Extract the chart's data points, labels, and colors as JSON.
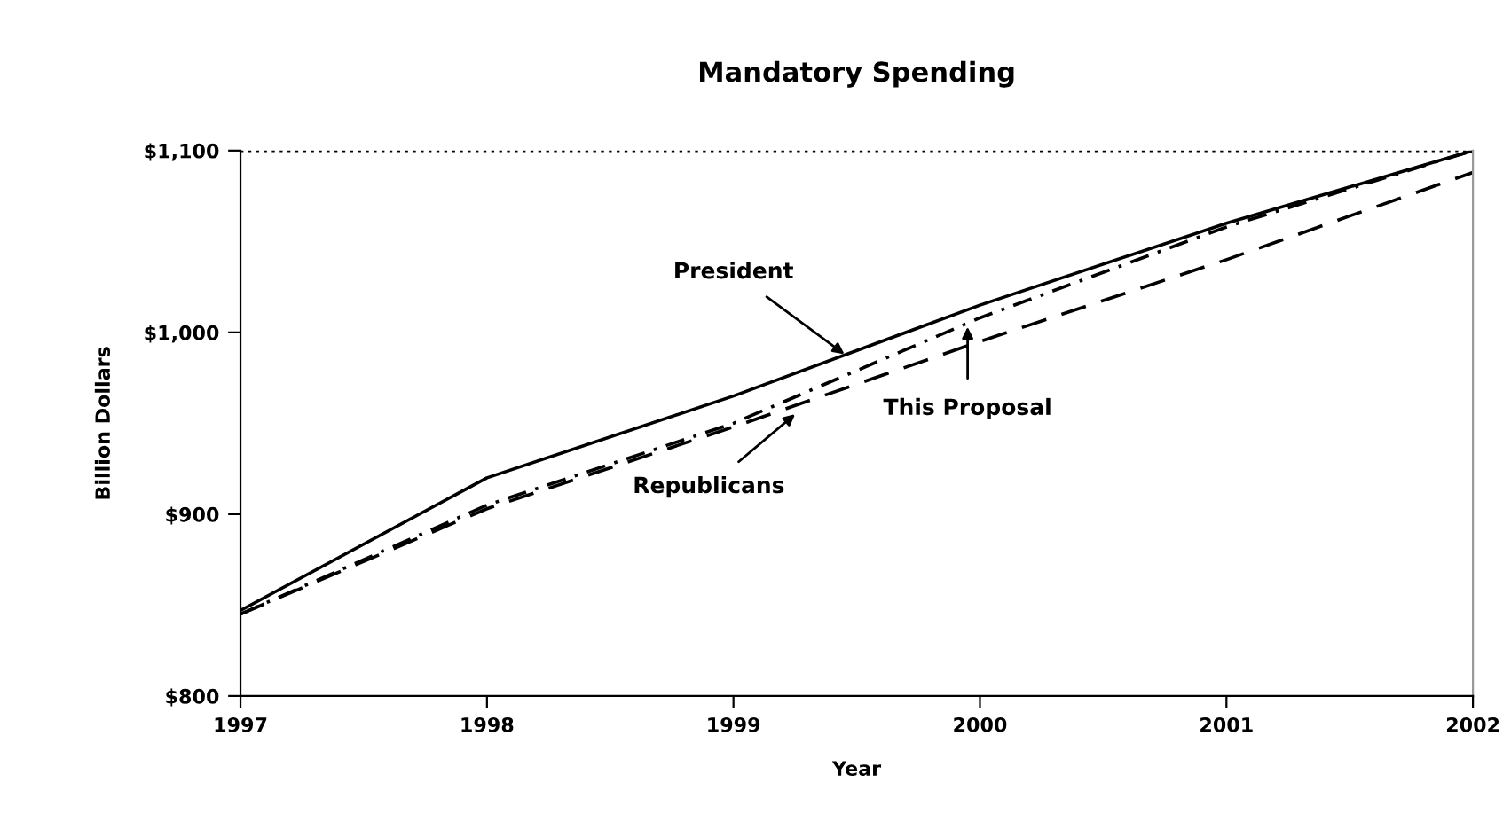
{
  "chart_data": {
    "type": "line",
    "title": "Mandatory Spending",
    "xlabel": "Year",
    "ylabel": "Billion Dollars",
    "x": [
      1997,
      1998,
      1999,
      2000,
      2001,
      2002
    ],
    "series": [
      {
        "color": "#000000",
        "line_style": "solid",
        "values": [
          847,
          920,
          965,
          1015,
          1060,
          1100
        ]
      },
      {
        "color": "#000000",
        "line_style": "dashdot",
        "values": [
          845,
          905,
          950,
          1008,
          1058,
          1100
        ]
      },
      {
        "color": "#000000",
        "line_style": "dashed",
        "values": [
          845,
          903,
          948,
          995,
          1040,
          1088
        ]
      }
    ],
    "xlim": [
      1997,
      2002
    ],
    "xticks": [
      1997,
      1998,
      1999,
      2000,
      2001,
      2002
    ],
    "ylim": [
      800,
      1100
    ],
    "yticks": [
      {
        "value": 800,
        "label": "$800"
      },
      {
        "value": 900,
        "label": "$900"
      },
      {
        "value": 1000,
        "label": "$1,000"
      },
      {
        "value": 1100,
        "label": "$1,100"
      }
    ],
    "grid": false,
    "legend": false,
    "marker": "none",
    "ref_lines": [
      {
        "axis": "y",
        "value": 1100,
        "line_style": "dotted",
        "color": "#000000"
      }
    ],
    "annotations": [
      {
        "text": "President",
        "x": 1999.45,
        "y": 988
      },
      {
        "text": "Republicans",
        "x": 1999.25,
        "y": 955
      },
      {
        "text": "This Proposal",
        "x": 1999.95,
        "y": 1003
      }
    ]
  }
}
